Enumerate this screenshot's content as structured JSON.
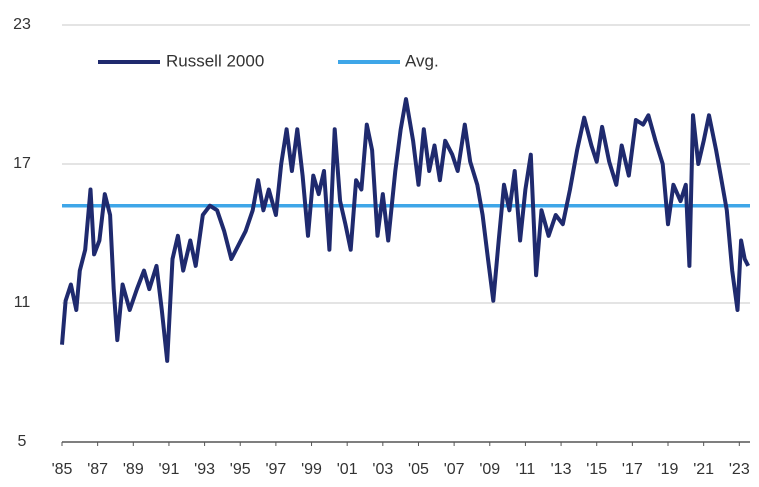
{
  "chart_data": {
    "type": "line",
    "xlim": [
      1985,
      2023.6
    ],
    "xticks": [
      {
        "value": 1985,
        "label": "'85"
      },
      {
        "value": 1987,
        "label": "'87"
      },
      {
        "value": 1989,
        "label": "'89"
      },
      {
        "value": 1991,
        "label": "'91"
      },
      {
        "value": 1993,
        "label": "'93"
      },
      {
        "value": 1995,
        "label": "'95"
      },
      {
        "value": 1997,
        "label": "'97"
      },
      {
        "value": 1999,
        "label": "'99"
      },
      {
        "value": 2001,
        "label": "'01"
      },
      {
        "value": 2003,
        "label": "'03"
      },
      {
        "value": 2005,
        "label": "'05"
      },
      {
        "value": 2007,
        "label": "'07"
      },
      {
        "value": 2009,
        "label": "'09"
      },
      {
        "value": 2011,
        "label": "'11"
      },
      {
        "value": 2013,
        "label": "'13"
      },
      {
        "value": 2015,
        "label": "'15"
      },
      {
        "value": 2017,
        "label": "'17"
      },
      {
        "value": 2019,
        "label": "'19"
      },
      {
        "value": 2021,
        "label": "'21"
      },
      {
        "value": 2023,
        "label": "'23"
      }
    ],
    "ylim": [
      5,
      23
    ],
    "yticks": [
      5,
      11,
      17,
      23
    ],
    "grid": true,
    "series": [
      {
        "name": "Russell 2000",
        "color": "#1f2a6e",
        "x": [
          1985.0,
          1985.2,
          1985.5,
          1985.8,
          1986.0,
          1986.3,
          1986.6,
          1986.8,
          1987.1,
          1987.4,
          1987.7,
          1987.9,
          1988.1,
          1988.4,
          1988.8,
          1989.2,
          1989.6,
          1989.9,
          1990.3,
          1990.6,
          1990.9,
          1991.2,
          1991.5,
          1991.8,
          1992.2,
          1992.5,
          1992.9,
          1993.3,
          1993.7,
          1994.1,
          1994.5,
          1994.9,
          1995.3,
          1995.7,
          1996.0,
          1996.3,
          1996.6,
          1997.0,
          1997.3,
          1997.6,
          1997.9,
          1998.2,
          1998.5,
          1998.8,
          1999.1,
          1999.4,
          1999.7,
          2000.0,
          2000.3,
          2000.6,
          2000.9,
          2001.2,
          2001.5,
          2001.8,
          2002.1,
          2002.4,
          2002.7,
          2003.0,
          2003.3,
          2003.7,
          2004.0,
          2004.3,
          2004.7,
          2005.0,
          2005.3,
          2005.6,
          2005.9,
          2006.2,
          2006.5,
          2006.9,
          2007.2,
          2007.6,
          2007.9,
          2008.3,
          2008.6,
          2008.9,
          2009.2,
          2009.5,
          2009.8,
          2010.1,
          2010.4,
          2010.7,
          2011.0,
          2011.3,
          2011.6,
          2011.9,
          2012.3,
          2012.7,
          2013.1,
          2013.5,
          2013.9,
          2014.3,
          2014.7,
          2015.0,
          2015.3,
          2015.7,
          2016.1,
          2016.4,
          2016.8,
          2017.2,
          2017.6,
          2017.9,
          2018.3,
          2018.7,
          2019.0,
          2019.3,
          2019.7,
          2020.0,
          2020.2,
          2020.4,
          2020.7,
          2021.0,
          2021.3,
          2021.7,
          2022.0,
          2022.3,
          2022.6,
          2022.9,
          2023.1,
          2023.3,
          2023.5
        ],
        "values": [
          9.2,
          11.1,
          11.8,
          10.7,
          12.4,
          13.3,
          15.9,
          13.1,
          13.7,
          15.7,
          14.8,
          11.6,
          9.4,
          11.8,
          10.7,
          11.6,
          12.4,
          11.6,
          12.6,
          10.7,
          8.5,
          12.9,
          13.9,
          12.4,
          13.7,
          12.6,
          14.8,
          15.2,
          15.0,
          14.1,
          12.9,
          13.5,
          14.1,
          15.0,
          16.3,
          15.0,
          15.9,
          14.8,
          17.0,
          18.5,
          16.7,
          18.5,
          16.5,
          13.9,
          16.5,
          15.7,
          16.7,
          13.3,
          18.5,
          15.4,
          14.4,
          13.3,
          16.3,
          15.9,
          18.7,
          17.6,
          13.9,
          15.7,
          13.7,
          16.7,
          18.5,
          19.8,
          18.0,
          16.1,
          18.5,
          16.7,
          17.8,
          16.3,
          18.0,
          17.4,
          16.7,
          18.7,
          17.1,
          16.1,
          14.8,
          12.9,
          11.1,
          13.7,
          16.1,
          15.0,
          16.7,
          13.7,
          15.9,
          17.4,
          12.2,
          15.0,
          13.9,
          14.8,
          14.4,
          15.9,
          17.6,
          19.0,
          17.8,
          17.1,
          18.6,
          17.1,
          16.1,
          17.8,
          16.5,
          18.9,
          18.7,
          19.1,
          18.0,
          17.0,
          14.4,
          16.1,
          15.4,
          16.1,
          12.6,
          19.1,
          17.0,
          18.0,
          19.1,
          17.6,
          16.3,
          15.0,
          12.4,
          10.7,
          13.7,
          12.9,
          12.6
        ]
      }
    ],
    "average": {
      "name": "Avg.",
      "color": "#3ea6e8",
      "value": 15.2
    }
  }
}
